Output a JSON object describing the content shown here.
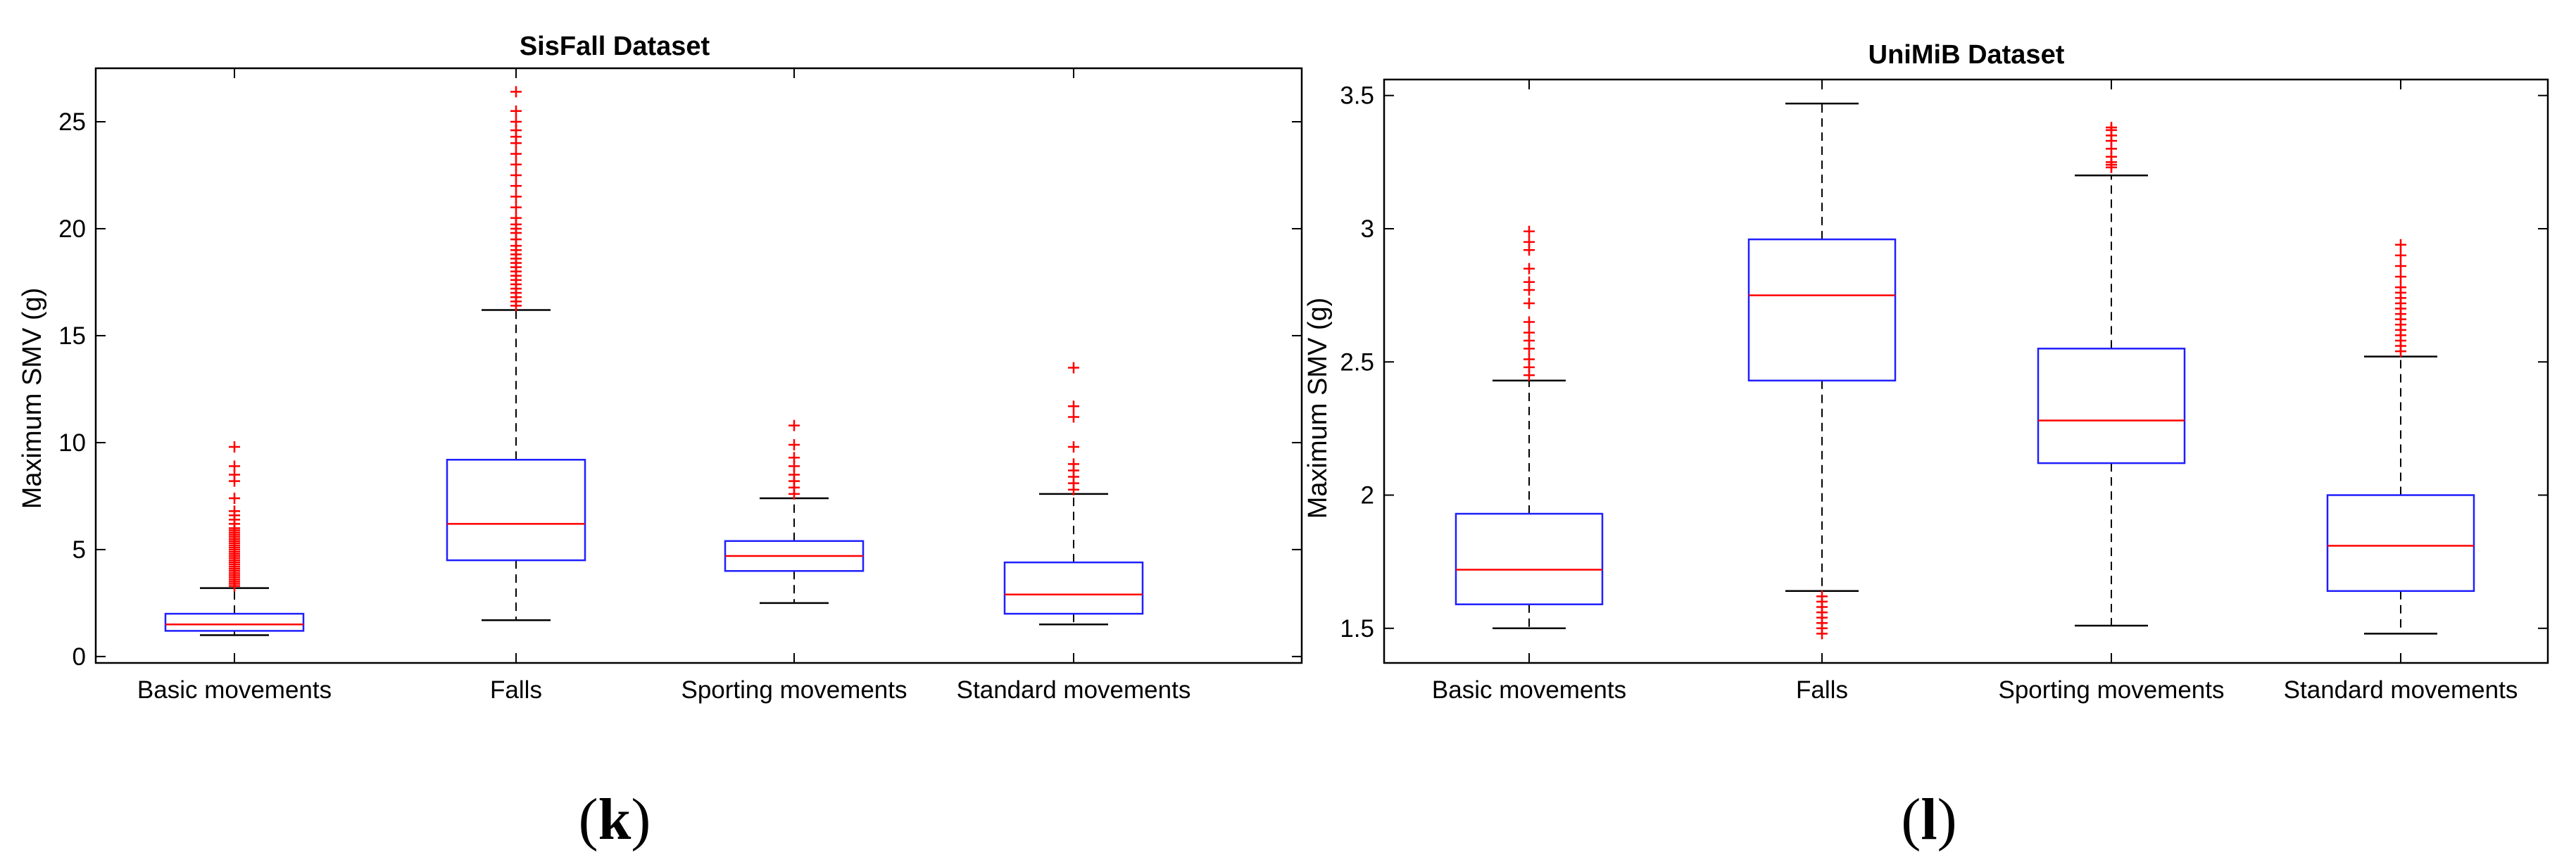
{
  "figure": {
    "panel_labels": [
      {
        "open": "(",
        "letter": "k",
        "close": ")"
      },
      {
        "open": "(",
        "letter": "l",
        "close": ")"
      }
    ]
  },
  "chart_data": [
    {
      "type": "boxplot",
      "title": "SisFall Dataset",
      "xlabel": "",
      "ylabel": "Maximum SMV (g)",
      "ylim": [
        -0.3,
        27.5
      ],
      "yticks": [
        0,
        5,
        10,
        15,
        20,
        25
      ],
      "yticklabels": [
        "0",
        "5",
        "10",
        "15",
        "20",
        "25"
      ],
      "grid": false,
      "colors": {
        "box": "#1f1fff",
        "median": "#ff0000",
        "whisker": "#000000",
        "outlier": "#ff0000"
      },
      "categories": [
        "Basic movements",
        "Falls",
        "Sporting movements",
        "Standard movements"
      ],
      "boxes": [
        {
          "whisker_low": 1.0,
          "q1": 1.2,
          "median": 1.5,
          "q3": 2.0,
          "whisker_high": 3.2,
          "outliers": [
            3.3,
            3.4,
            3.5,
            3.6,
            3.7,
            3.8,
            3.9,
            4.0,
            4.1,
            4.2,
            4.3,
            4.4,
            4.5,
            4.6,
            4.7,
            4.8,
            4.9,
            5.0,
            5.1,
            5.2,
            5.3,
            5.4,
            5.5,
            5.6,
            5.7,
            5.8,
            5.9,
            6.0,
            6.2,
            6.4,
            6.6,
            6.8,
            7.4,
            8.2,
            8.5,
            8.9,
            9.8
          ]
        },
        {
          "whisker_low": 1.7,
          "q1": 4.5,
          "median": 6.2,
          "q3": 9.2,
          "whisker_high": 16.2,
          "outliers": [
            16.4,
            16.6,
            16.8,
            17.0,
            17.2,
            17.4,
            17.6,
            17.8,
            18.0,
            18.2,
            18.4,
            18.6,
            18.8,
            19.0,
            19.2,
            19.5,
            19.8,
            20.0,
            20.2,
            20.5,
            21.0,
            21.5,
            22.0,
            22.5,
            23.0,
            23.5,
            24.0,
            24.3,
            24.6,
            25.0,
            25.5,
            26.4
          ]
        },
        {
          "whisker_low": 2.5,
          "q1": 4.0,
          "median": 4.7,
          "q3": 5.4,
          "whisker_high": 7.4,
          "outliers": [
            7.6,
            7.9,
            8.2,
            8.5,
            8.9,
            9.3,
            9.9,
            10.8
          ]
        },
        {
          "whisker_low": 1.5,
          "q1": 2.0,
          "median": 2.9,
          "q3": 4.4,
          "whisker_high": 7.6,
          "outliers": [
            7.8,
            8.1,
            8.4,
            8.7,
            9.0,
            9.8,
            11.2,
            11.7,
            13.5
          ]
        }
      ]
    },
    {
      "type": "boxplot",
      "title": "UniMiB Dataset",
      "xlabel": "",
      "ylabel": "Maximum SMV (g)",
      "ylim": [
        1.37,
        3.56
      ],
      "yticks": [
        1.5,
        2,
        2.5,
        3,
        3.5
      ],
      "yticklabels": [
        "1.5",
        "2",
        "2.5",
        "3",
        "3.5"
      ],
      "grid": false,
      "colors": {
        "box": "#1f1fff",
        "median": "#ff0000",
        "whisker": "#000000",
        "outlier": "#ff0000"
      },
      "categories": [
        "Basic movements",
        "Falls",
        "Sporting movements",
        "Standard movements"
      ],
      "boxes": [
        {
          "whisker_low": 1.5,
          "q1": 1.59,
          "median": 1.72,
          "q3": 1.93,
          "whisker_high": 2.43,
          "outliers": [
            2.45,
            2.48,
            2.51,
            2.55,
            2.58,
            2.61,
            2.65,
            2.72,
            2.77,
            2.8,
            2.85,
            2.92,
            2.95,
            2.99
          ]
        },
        {
          "whisker_low": 1.64,
          "q1": 2.43,
          "median": 2.75,
          "q3": 2.96,
          "whisker_high": 3.47,
          "outliers": [
            1.48,
            1.5,
            1.52,
            1.54,
            1.56,
            1.58,
            1.6,
            1.62
          ]
        },
        {
          "whisker_low": 1.51,
          "q1": 2.12,
          "median": 2.28,
          "q3": 2.55,
          "whisker_high": 3.2,
          "outliers": [
            3.23,
            3.24,
            3.25,
            3.27,
            3.3,
            3.33,
            3.35,
            3.37,
            3.38
          ]
        },
        {
          "whisker_low": 1.48,
          "q1": 1.64,
          "median": 1.81,
          "q3": 2.0,
          "whisker_high": 2.52,
          "outliers": [
            2.54,
            2.56,
            2.58,
            2.6,
            2.62,
            2.64,
            2.66,
            2.68,
            2.7,
            2.72,
            2.74,
            2.76,
            2.78,
            2.82,
            2.86,
            2.9,
            2.94
          ]
        }
      ]
    }
  ]
}
